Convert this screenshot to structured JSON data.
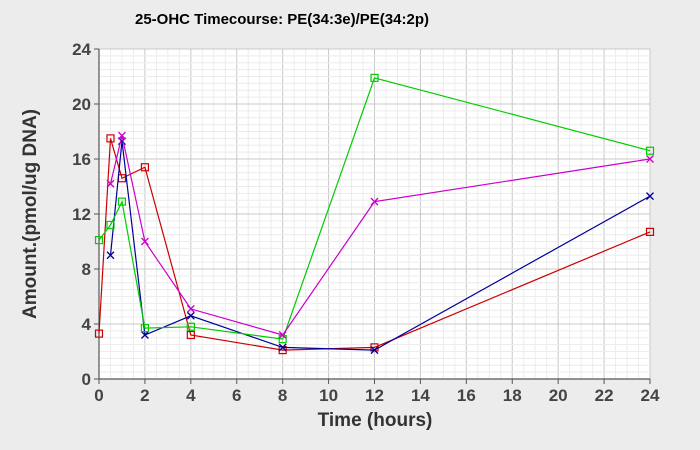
{
  "chart_data": {
    "type": "line",
    "title": "25-OHC Timecourse: PE(34:3e)/PE(34:2p)",
    "xlabel": "Time (hours)",
    "ylabel": "Amount.(pmol/ug DNA)",
    "xlim": [
      0,
      24
    ],
    "ylim": [
      0,
      24
    ],
    "xticks": [
      0,
      2,
      4,
      6,
      8,
      10,
      12,
      14,
      16,
      18,
      20,
      22,
      24
    ],
    "yticks": [
      0,
      4,
      8,
      12,
      16,
      20,
      24
    ],
    "grid": true,
    "series": [
      {
        "color": "#cc0000",
        "marker": "square",
        "points": [
          [
            0,
            3.3
          ],
          [
            0.5,
            17.5
          ],
          [
            1,
            14.6
          ],
          [
            2,
            15.4
          ],
          [
            4,
            3.2
          ],
          [
            8,
            2.1
          ],
          [
            12,
            2.3
          ],
          [
            24,
            10.7
          ]
        ]
      },
      {
        "color": "#000099",
        "marker": "x",
        "points": [
          [
            0.5,
            9.0
          ],
          [
            1,
            17.3
          ],
          [
            2,
            3.2
          ],
          [
            4,
            4.6
          ],
          [
            8,
            2.3
          ],
          [
            12,
            2.1
          ],
          [
            24,
            13.3
          ]
        ]
      },
      {
        "color": "#00cc00",
        "marker": "square",
        "points": [
          [
            0,
            10.1
          ],
          [
            0.5,
            11.2
          ],
          [
            1,
            12.9
          ],
          [
            2,
            3.7
          ],
          [
            4,
            3.8
          ],
          [
            8,
            2.9
          ],
          [
            12,
            21.9
          ],
          [
            24,
            16.6
          ]
        ]
      },
      {
        "color": "#cc00cc",
        "marker": "x",
        "points": [
          [
            0.5,
            14.2
          ],
          [
            1,
            17.7
          ],
          [
            2,
            10.0
          ],
          [
            4,
            5.1
          ],
          [
            8,
            3.2
          ],
          [
            12,
            12.9
          ],
          [
            24,
            16.0
          ]
        ]
      }
    ]
  }
}
